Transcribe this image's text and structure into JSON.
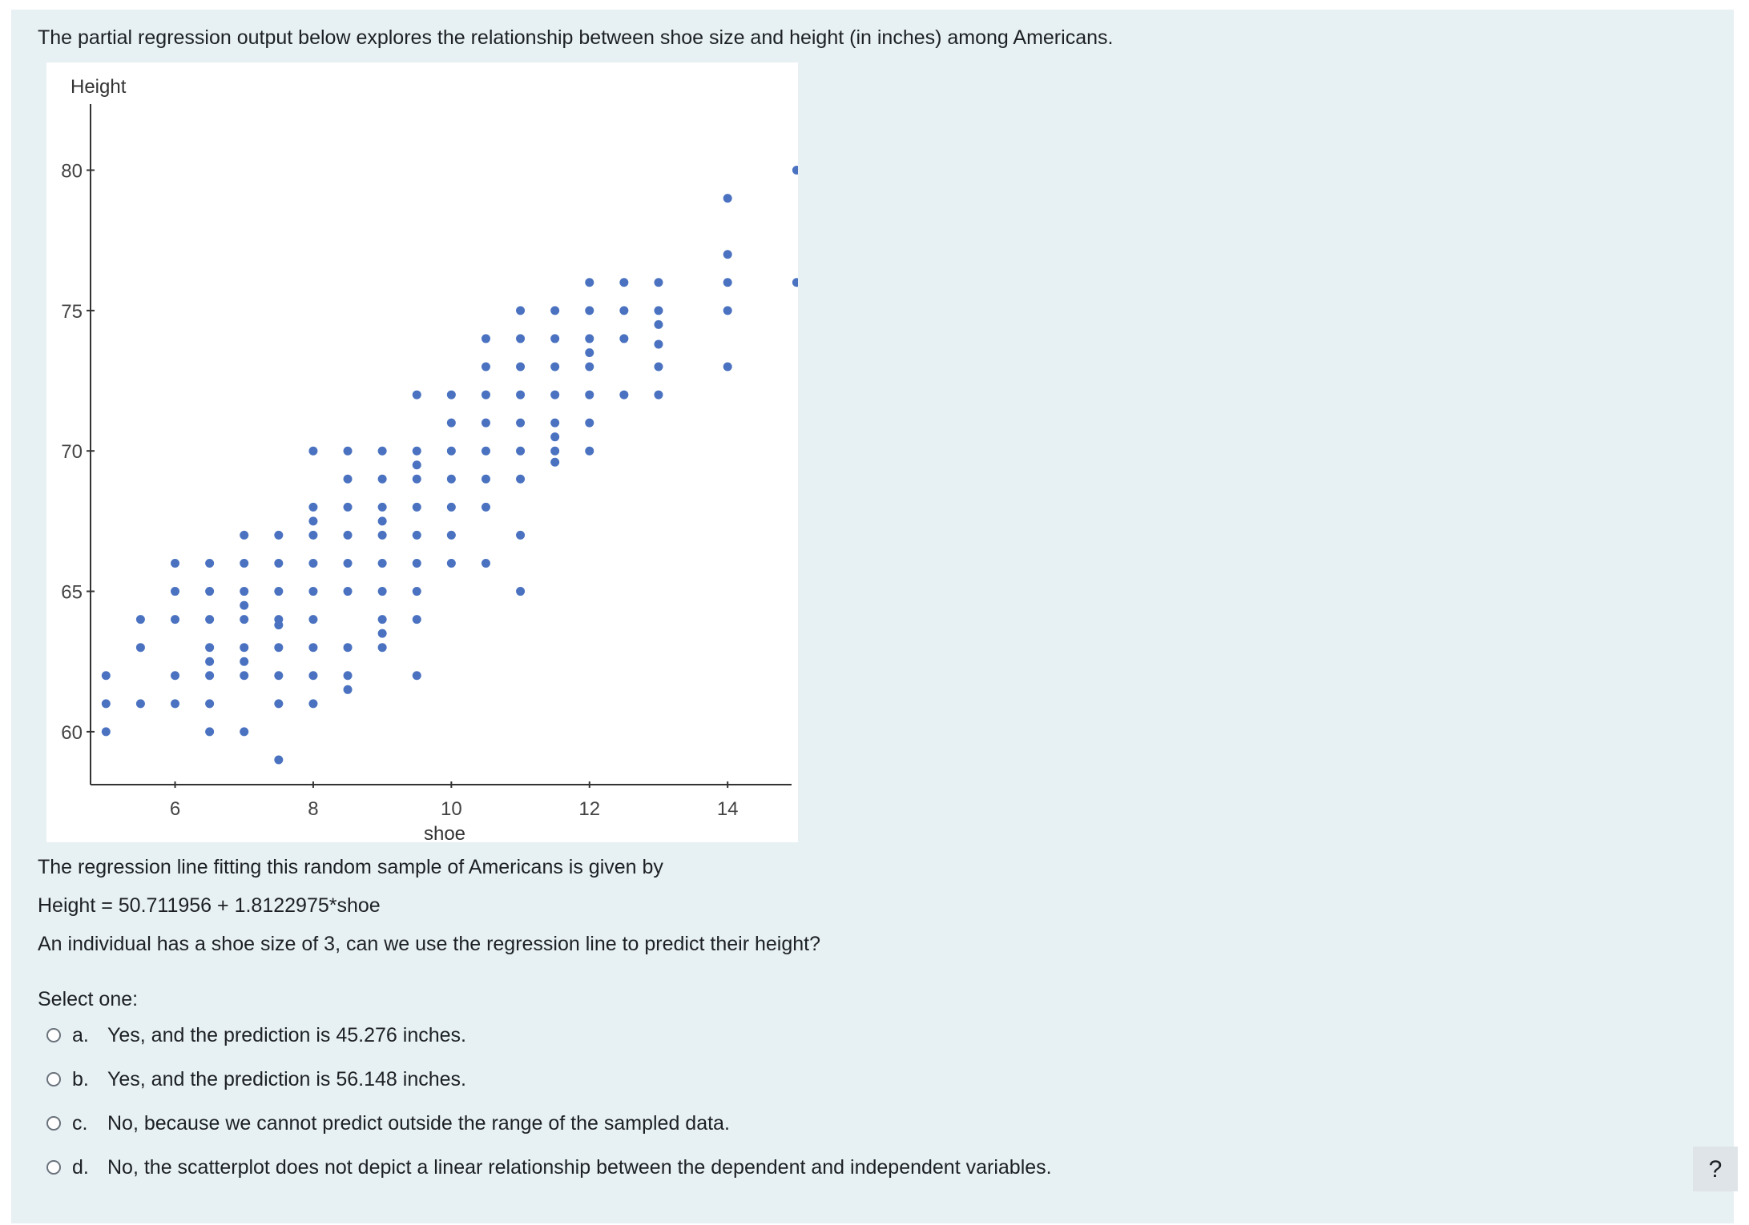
{
  "question": {
    "intro": "The partial regression output below explores the relationship between shoe size and height (in inches) among Americans.",
    "line_intro": "The regression line fitting this random sample of Americans is given by",
    "equation": "Height = 50.711956 + 1.8122975*shoe",
    "prompt": "An individual has a shoe size of 3, can we use the regression line to predict their height?",
    "select_label": "Select one:"
  },
  "answers": [
    {
      "letter": "a.",
      "text": "Yes, and the prediction is 45.276 inches."
    },
    {
      "letter": "b.",
      "text": "Yes, and the prediction is 56.148 inches."
    },
    {
      "letter": "c.",
      "text": "No, because we cannot predict outside the range of the sampled data."
    },
    {
      "letter": "d.",
      "text": "No, the scatterplot does not depict a linear relationship between the dependent and independent variables."
    }
  ],
  "help_button": "?",
  "chart_data": {
    "type": "scatter",
    "xlabel": "shoe",
    "ylabel": "Height",
    "xlim": [
      4.95,
      15.1
    ],
    "ylim": [
      58.6,
      80.3
    ],
    "xticks": [
      6,
      8,
      10,
      12,
      14
    ],
    "yticks": [
      60,
      65,
      70,
      75,
      80
    ],
    "point_color": "#4a72c0",
    "points": [
      [
        5,
        62
      ],
      [
        5,
        61
      ],
      [
        5,
        60
      ],
      [
        5.5,
        64
      ],
      [
        5.5,
        63
      ],
      [
        5.5,
        61
      ],
      [
        6,
        66
      ],
      [
        6,
        65
      ],
      [
        6,
        64
      ],
      [
        6,
        62
      ],
      [
        6,
        61
      ],
      [
        6.5,
        66
      ],
      [
        6.5,
        65
      ],
      [
        6.5,
        64
      ],
      [
        6.5,
        63
      ],
      [
        6.5,
        62.5
      ],
      [
        6.5,
        62
      ],
      [
        6.5,
        61
      ],
      [
        6.5,
        60
      ],
      [
        7,
        67
      ],
      [
        7,
        66
      ],
      [
        7,
        65
      ],
      [
        7,
        64.5
      ],
      [
        7,
        64
      ],
      [
        7,
        63
      ],
      [
        7,
        62.5
      ],
      [
        7,
        62
      ],
      [
        7,
        60
      ],
      [
        7.5,
        67
      ],
      [
        7.5,
        66
      ],
      [
        7.5,
        65
      ],
      [
        7.5,
        64
      ],
      [
        7.5,
        63.8
      ],
      [
        7.5,
        63
      ],
      [
        7.5,
        62
      ],
      [
        7.5,
        61
      ],
      [
        7.5,
        59
      ],
      [
        8,
        70
      ],
      [
        8,
        68
      ],
      [
        8,
        67.5
      ],
      [
        8,
        67
      ],
      [
        8,
        66
      ],
      [
        8,
        65
      ],
      [
        8,
        64
      ],
      [
        8,
        63
      ],
      [
        8,
        62
      ],
      [
        8,
        61
      ],
      [
        8.5,
        70
      ],
      [
        8.5,
        69
      ],
      [
        8.5,
        68
      ],
      [
        8.5,
        67
      ],
      [
        8.5,
        66
      ],
      [
        8.5,
        65
      ],
      [
        8.5,
        63
      ],
      [
        8.5,
        62
      ],
      [
        8.5,
        61.5
      ],
      [
        9,
        70
      ],
      [
        9,
        69
      ],
      [
        9,
        68
      ],
      [
        9,
        67.5
      ],
      [
        9,
        67
      ],
      [
        9,
        66
      ],
      [
        9,
        65
      ],
      [
        9,
        64
      ],
      [
        9,
        63.5
      ],
      [
        9,
        63
      ],
      [
        9.5,
        72
      ],
      [
        9.5,
        70
      ],
      [
        9.5,
        69.5
      ],
      [
        9.5,
        69
      ],
      [
        9.5,
        68
      ],
      [
        9.5,
        67
      ],
      [
        9.5,
        66
      ],
      [
        9.5,
        65
      ],
      [
        9.5,
        64
      ],
      [
        9.5,
        62
      ],
      [
        10,
        72
      ],
      [
        10,
        71
      ],
      [
        10,
        70
      ],
      [
        10,
        69
      ],
      [
        10,
        68
      ],
      [
        10,
        67
      ],
      [
        10,
        66
      ],
      [
        10.5,
        74
      ],
      [
        10.5,
        73
      ],
      [
        10.5,
        72
      ],
      [
        10.5,
        71
      ],
      [
        10.5,
        70
      ],
      [
        10.5,
        69
      ],
      [
        10.5,
        68
      ],
      [
        10.5,
        66
      ],
      [
        11,
        75
      ],
      [
        11,
        74
      ],
      [
        11,
        73
      ],
      [
        11,
        72
      ],
      [
        11,
        71
      ],
      [
        11,
        70
      ],
      [
        11,
        69
      ],
      [
        11,
        67
      ],
      [
        11,
        65
      ],
      [
        11.5,
        75
      ],
      [
        11.5,
        74
      ],
      [
        11.5,
        73
      ],
      [
        11.5,
        72
      ],
      [
        11.5,
        71
      ],
      [
        11.5,
        70.5
      ],
      [
        11.5,
        70
      ],
      [
        11.5,
        69.6
      ],
      [
        12,
        76
      ],
      [
        12,
        75
      ],
      [
        12,
        74
      ],
      [
        12,
        73.5
      ],
      [
        12,
        73
      ],
      [
        12,
        72
      ],
      [
        12,
        71
      ],
      [
        12,
        70
      ],
      [
        12.5,
        76
      ],
      [
        12.5,
        75
      ],
      [
        12.5,
        74
      ],
      [
        12.5,
        72
      ],
      [
        13,
        76
      ],
      [
        13,
        75
      ],
      [
        13,
        74.5
      ],
      [
        13,
        73.8
      ],
      [
        13,
        73
      ],
      [
        13,
        72
      ],
      [
        14,
        79
      ],
      [
        14,
        77
      ],
      [
        14,
        76
      ],
      [
        14,
        75
      ],
      [
        14,
        73
      ],
      [
        15,
        80
      ],
      [
        15,
        76
      ]
    ]
  }
}
